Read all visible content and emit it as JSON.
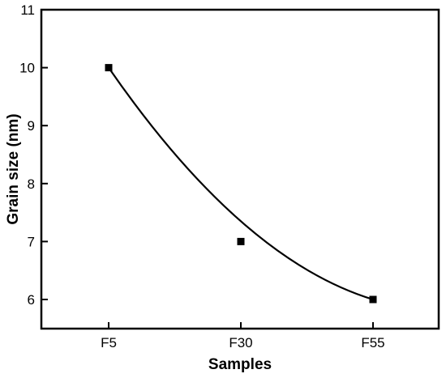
{
  "chart_data": {
    "type": "scatter",
    "title": "",
    "xlabel": "Samples",
    "ylabel": "Grain size (nm)",
    "categories": [
      "F5",
      "F30",
      "F55"
    ],
    "series": [
      {
        "values": [
          10,
          7,
          6
        ],
        "marker": "square",
        "color": "#000000"
      }
    ],
    "fit_curve": {
      "type": "smooth",
      "passes_near": [
        [
          0,
          10
        ],
        [
          1,
          7.35
        ],
        [
          2,
          6
        ]
      ]
    },
    "ylim": [
      5.6,
      11
    ],
    "yticks": [
      6,
      7,
      8,
      9,
      10,
      11
    ],
    "grid": false,
    "legend": "none"
  }
}
